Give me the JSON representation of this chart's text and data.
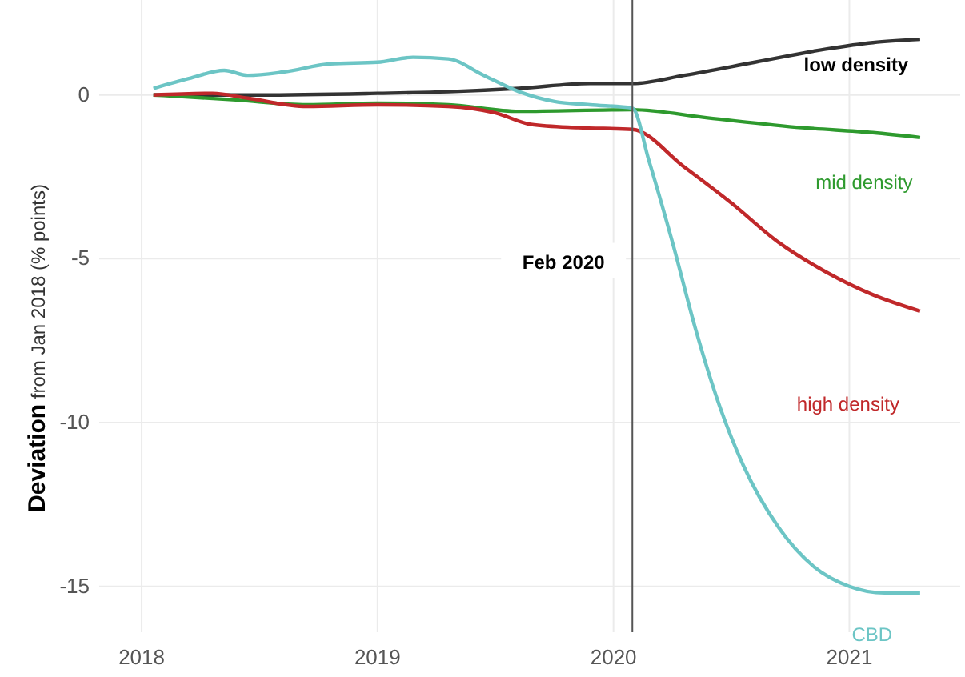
{
  "chart_data": {
    "type": "line",
    "ylabel": "Deviation from Jan 2018 (% points)",
    "xlim": [
      2017.82,
      2021.47
    ],
    "ylim": [
      -16.4,
      2.9
    ],
    "xticks": [
      2018,
      2019,
      2020,
      2021
    ],
    "yticks": [
      0,
      -5,
      -10,
      -15
    ],
    "grid": true,
    "marker": "none",
    "line_style": "solid",
    "ref_lines": [
      {
        "axis": "x",
        "value": 2020.08,
        "label": "Feb 2020",
        "color": "#555555"
      }
    ],
    "series": [
      {
        "name": "low density",
        "color": "#333333",
        "x": [
          2018.05,
          2018.5,
          2019.0,
          2019.3,
          2019.6,
          2019.9,
          2020.08,
          2020.3,
          2020.6,
          2020.9,
          2021.1,
          2021.3
        ],
        "values": [
          0,
          0,
          0.05,
          0.1,
          0.2,
          0.35,
          0.35,
          0.6,
          1.0,
          1.4,
          1.6,
          1.7
        ]
      },
      {
        "name": "mid density",
        "color": "#2e9a2e",
        "x": [
          2018.05,
          2018.4,
          2018.7,
          2019.0,
          2019.3,
          2019.6,
          2020.08,
          2020.4,
          2020.8,
          2021.1,
          2021.3
        ],
        "values": [
          0,
          -0.15,
          -0.3,
          -0.25,
          -0.3,
          -0.5,
          -0.45,
          -0.7,
          -1.0,
          -1.15,
          -1.3
        ]
      },
      {
        "name": "high density",
        "color": "#c0282a",
        "x": [
          2018.05,
          2018.3,
          2018.45,
          2018.7,
          2019.0,
          2019.3,
          2019.5,
          2019.65,
          2019.85,
          2020.08,
          2020.3,
          2020.5,
          2020.7,
          2020.9,
          2021.1,
          2021.3
        ],
        "values": [
          0,
          0.05,
          -0.1,
          -0.35,
          -0.3,
          -0.35,
          -0.55,
          -0.9,
          -1.0,
          -1.05,
          -2.2,
          -3.3,
          -4.5,
          -5.4,
          -6.1,
          -6.6
        ]
      },
      {
        "name": "CBD",
        "color": "#6cc5c5",
        "x": [
          2018.05,
          2018.2,
          2018.35,
          2018.45,
          2018.6,
          2018.8,
          2019.0,
          2019.15,
          2019.3,
          2019.45,
          2019.6,
          2019.75,
          2019.9,
          2020.08,
          2020.15,
          2020.25,
          2020.35,
          2020.45,
          2020.55,
          2020.7,
          2020.85,
          2021.0,
          2021.15,
          2021.3
        ],
        "values": [
          0.2,
          0.5,
          0.75,
          0.6,
          0.7,
          0.95,
          1.0,
          1.15,
          1.1,
          0.6,
          0.1,
          -0.2,
          -0.3,
          -0.4,
          -2.0,
          -4.5,
          -7.2,
          -9.5,
          -11.3,
          -13.2,
          -14.4,
          -15.0,
          -15.2,
          -15.2
        ]
      }
    ]
  }
}
